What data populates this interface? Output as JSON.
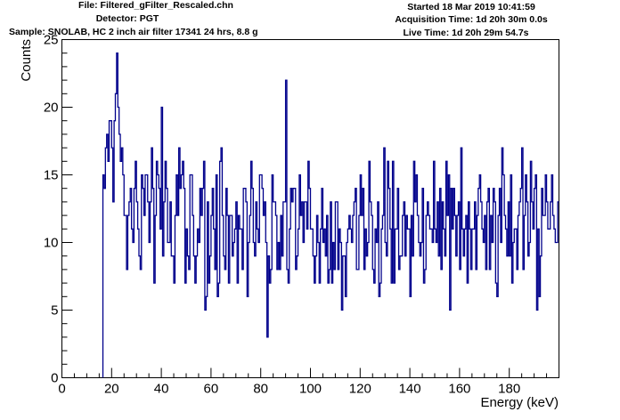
{
  "header": {
    "file": "File: Filtered_gFilter_Rescaled.chn",
    "detector": "Detector: PGT",
    "sample": "Sample: SNOLAB, HC 2 inch air filter 17341 24 hrs, 8.8 g",
    "started": "Started 18 Mar 2019 10:41:59",
    "acquisition_time": "Acquisition Time: 1d 20h 30m 0.0s",
    "live_time": "Live Time: 1d 20h 29m 54.7s"
  },
  "chart_data": {
    "type": "histogram",
    "xlabel": "Energy (keV)",
    "ylabel": "Counts",
    "xlim": [
      0,
      200
    ],
    "ylim": [
      0,
      25
    ],
    "x_ticks": [
      0,
      20,
      40,
      60,
      80,
      100,
      120,
      140,
      160,
      180
    ],
    "y_ticks": [
      0,
      5,
      10,
      15,
      20,
      25
    ],
    "line_color": "#00008b",
    "bin_width": 0.5,
    "x_start": 16.5,
    "values": [
      15,
      14,
      17,
      18,
      16,
      19,
      19,
      17,
      13,
      19,
      21,
      24,
      20,
      18,
      16,
      17,
      15,
      12,
      12,
      8,
      12,
      13,
      14,
      11,
      10,
      14,
      16,
      13,
      11,
      9,
      8,
      15,
      14,
      12,
      15,
      15,
      13,
      10,
      13,
      17,
      14,
      7,
      12,
      16,
      15,
      14,
      11,
      20,
      9,
      13,
      16,
      14,
      10,
      10,
      13,
      9,
      9,
      7,
      12,
      15,
      12,
      17,
      14,
      15,
      16,
      14,
      7,
      11,
      9,
      8,
      15,
      15,
      12,
      9,
      7,
      9,
      11,
      10,
      14,
      12,
      14,
      16,
      5,
      6,
      13,
      7,
      9,
      12,
      14,
      11,
      8,
      15,
      6,
      7,
      16,
      17,
      12,
      9,
      8,
      14,
      12,
      7,
      12,
      12,
      9,
      10,
      11,
      13,
      7,
      12,
      11,
      11,
      8,
      14,
      14,
      13,
      6,
      10,
      12,
      16,
      14,
      10,
      9,
      13,
      11,
      10,
      15,
      15,
      14,
      12,
      13,
      10,
      3,
      9,
      7,
      8,
      15,
      13,
      13,
      12,
      8,
      10,
      8,
      12,
      9,
      13,
      13,
      22,
      8,
      7,
      11,
      14,
      13,
      14,
      14,
      8,
      9,
      11,
      15,
      12,
      13,
      10,
      13,
      13,
      11,
      16,
      14,
      11,
      11,
      9,
      7,
      9,
      12,
      10,
      7,
      11,
      14,
      10,
      11,
      9,
      12,
      7,
      8,
      13,
      7,
      10,
      8,
      13,
      13,
      8,
      11,
      10,
      5,
      9,
      9,
      6,
      10,
      11,
      12,
      11,
      10,
      12,
      13,
      14,
      8,
      8,
      12,
      15,
      12,
      14,
      8,
      11,
      9,
      10,
      16,
      13,
      12,
      8,
      7,
      11,
      10,
      13,
      6,
      7,
      11,
      12,
      17,
      10,
      9,
      16,
      14,
      11,
      7,
      16,
      7,
      11,
      11,
      14,
      8,
      9,
      9,
      12,
      13,
      9,
      12,
      11,
      11,
      6,
      12,
      9,
      16,
      13,
      15,
      12,
      10,
      9,
      10,
      14,
      7,
      8,
      12,
      13,
      12,
      11,
      11,
      10,
      16,
      11,
      10,
      13,
      9,
      14,
      8,
      13,
      11,
      9,
      16,
      12,
      15,
      5,
      14,
      11,
      14,
      12,
      9,
      12,
      13,
      8,
      17,
      11,
      9,
      11,
      12,
      7,
      13,
      11,
      8,
      11,
      11,
      13,
      8,
      12,
      14,
      15,
      13,
      11,
      10,
      12,
      8,
      13,
      14,
      8,
      12,
      10,
      14,
      13,
      7,
      6,
      12,
      14,
      10,
      17,
      15,
      12,
      11,
      9,
      13,
      9,
      15,
      7,
      10,
      11,
      11,
      8,
      12,
      13,
      14,
      17,
      8,
      12,
      15,
      13,
      9,
      10,
      16,
      13,
      11,
      14,
      15,
      5,
      11,
      6,
      9,
      14,
      12,
      12,
      15,
      13,
      11,
      11,
      13,
      15,
      12,
      11,
      10,
      10,
      13,
      12,
      16,
      14,
      13,
      11,
      9,
      15,
      8,
      14,
      13,
      16,
      12,
      11,
      11,
      8,
      14,
      10,
      13,
      9,
      11,
      11,
      17,
      13,
      14,
      16,
      11,
      8,
      12,
      8,
      13,
      15,
      13,
      15,
      11,
      8,
      11,
      13,
      14,
      15,
      14,
      13,
      9,
      14,
      10,
      14,
      15,
      13,
      12,
      17,
      12,
      11,
      9,
      11,
      13,
      16,
      12,
      14,
      13,
      11,
      13,
      16,
      11,
      10,
      15,
      8,
      12,
      12,
      9,
      11,
      14,
      11,
      9,
      12,
      14,
      7,
      13,
      16,
      9,
      10,
      15,
      13,
      12,
      11,
      13,
      14,
      7,
      11,
      12,
      10,
      14,
      15,
      11,
      12,
      17,
      12,
      13,
      14,
      13,
      10,
      12,
      15,
      11,
      12,
      14,
      13,
      13,
      12,
      10,
      11,
      12,
      16,
      12,
      12,
      11,
      13,
      12,
      9,
      13,
      15,
      10,
      14,
      12,
      12,
      11,
      10,
      17,
      13,
      11,
      13,
      14,
      16,
      17,
      15,
      12,
      11,
      14,
      11,
      13,
      15,
      16,
      12,
      13,
      11,
      14,
      12,
      13,
      14,
      11,
      17,
      13,
      12,
      12,
      15,
      16,
      12,
      14,
      11,
      13,
      14,
      10,
      12,
      15,
      13,
      12,
      16,
      14,
      14,
      13,
      15,
      13,
      12,
      14,
      17,
      11,
      13,
      12,
      13,
      14,
      12,
      11,
      16,
      13,
      14,
      12,
      13,
      15,
      14,
      13,
      14,
      13,
      15,
      16,
      18,
      20,
      22,
      23,
      24,
      21,
      18,
      16,
      14,
      12,
      10,
      11,
      14,
      15,
      16,
      17,
      14,
      12,
      13,
      15,
      14,
      12,
      13,
      15,
      14,
      13,
      12,
      14,
      15,
      14,
      13,
      12,
      14,
      15,
      13,
      12,
      14,
      13,
      15
    ]
  }
}
